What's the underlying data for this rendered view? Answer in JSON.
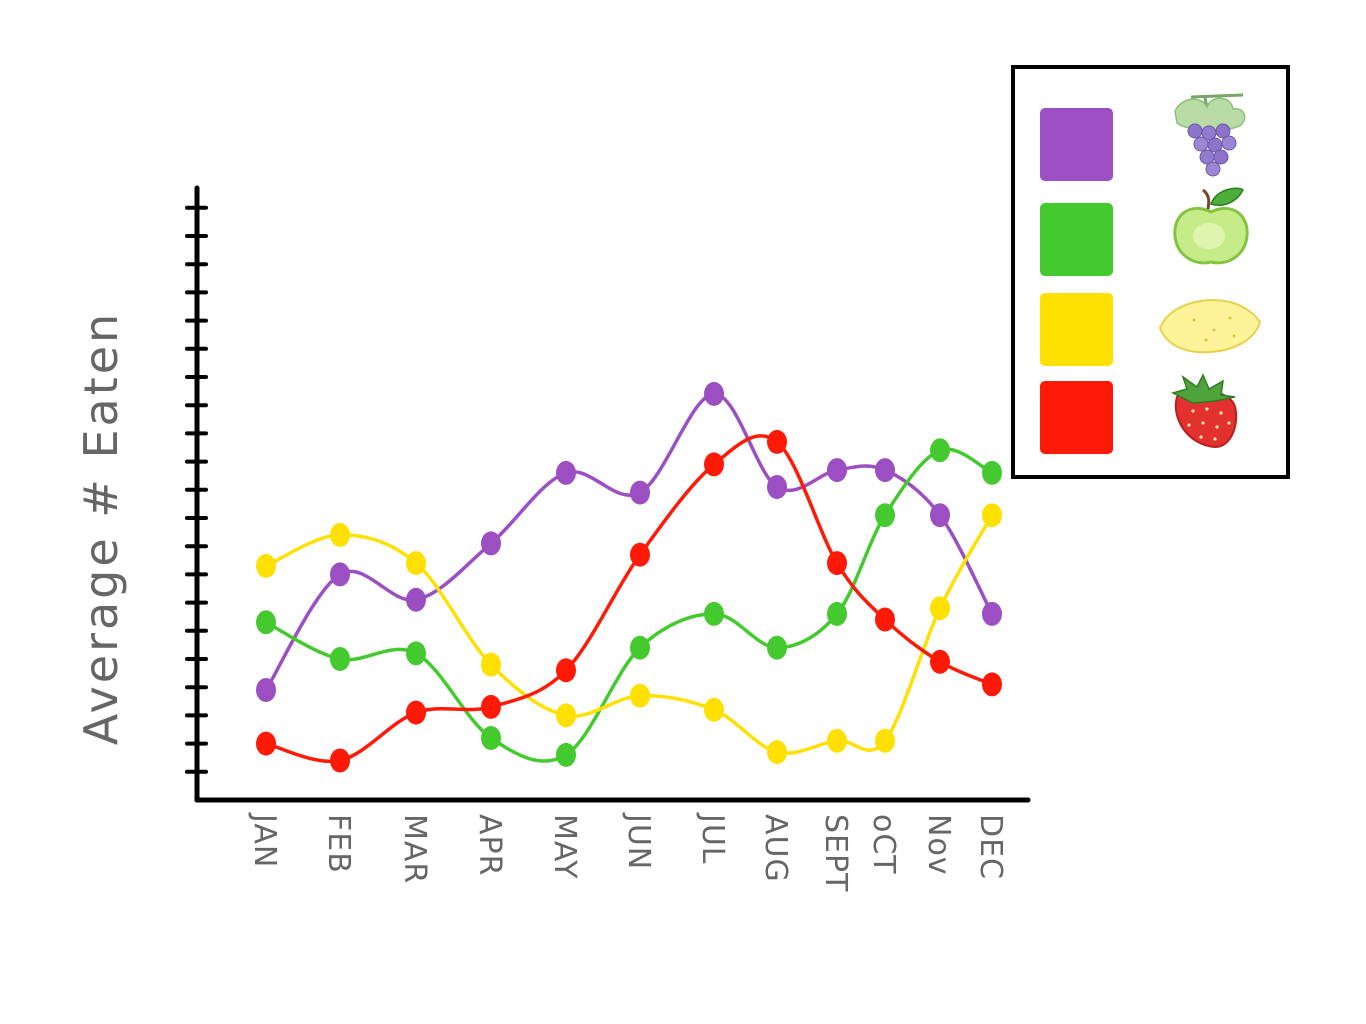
{
  "chart_data": {
    "type": "line",
    "title": "",
    "xlabel": "",
    "ylabel": "Average # Eaten",
    "categories": [
      "JAN",
      "FEB",
      "MAR",
      "APR",
      "MAY",
      "JUN",
      "JUL",
      "AUG",
      "SEPT",
      "oCT",
      "Nov",
      "DEC"
    ],
    "ylim": [
      0,
      21
    ],
    "grid": false,
    "legend_position": "top-right",
    "series": [
      {
        "icon": "grapes-icon",
        "color": "#9b4fc2",
        "values": [
          3.9,
          8.0,
          7.1,
          9.1,
          11.6,
          10.9,
          14.4,
          11.1,
          11.7,
          11.7,
          10.1,
          6.6
        ]
      },
      {
        "icon": "apple-icon",
        "color": "#44c92f",
        "values": [
          6.3,
          5.0,
          5.2,
          2.2,
          1.6,
          5.4,
          6.6,
          5.4,
          6.6,
          10.1,
          12.4,
          11.6
        ]
      },
      {
        "icon": "lemon-icon",
        "color": "#ffe000",
        "values": [
          8.3,
          9.4,
          8.4,
          4.8,
          3.0,
          3.7,
          3.2,
          1.7,
          2.1,
          2.1,
          6.8,
          10.1
        ]
      },
      {
        "icon": "strawberry-icon",
        "color": "#ff1a08",
        "values": [
          2.0,
          1.4,
          3.1,
          3.3,
          4.6,
          8.7,
          11.9,
          12.7,
          8.4,
          6.4,
          4.9,
          4.1
        ]
      }
    ]
  }
}
